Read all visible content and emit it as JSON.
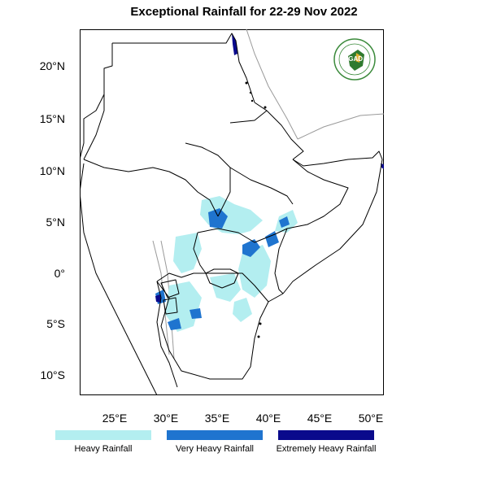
{
  "title": "Exceptional Rainfall for 22-29 Nov 2022",
  "map": {
    "x_axis_labels": [
      "25°E",
      "30°E",
      "35°E",
      "40°E",
      "45°E",
      "50°E"
    ],
    "y_axis_labels": [
      "20°N",
      "15°N",
      "10°N",
      "5°N",
      "0°",
      "5°S",
      "10°S"
    ],
    "lon_range": [
      21.5,
      51.5
    ],
    "lat_range": [
      -12,
      23.5
    ]
  },
  "logo": {
    "text": "IGAD"
  },
  "legend": [
    {
      "label": "Heavy Rainfall",
      "color": "#b3eef0"
    },
    {
      "label": "Very Heavy Rainfall",
      "color": "#1f74cf"
    },
    {
      "label": "Extremely Heavy Rainfall",
      "color": "#0a0a8c"
    }
  ]
}
